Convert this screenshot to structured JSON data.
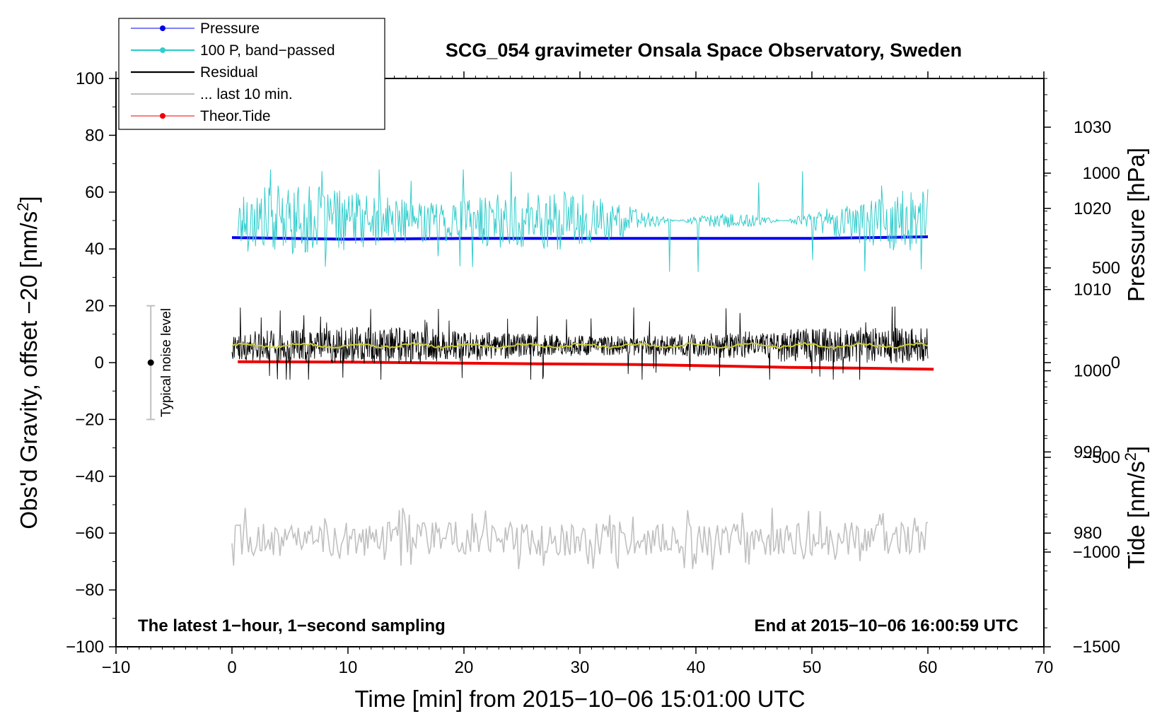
{
  "chart_data": {
    "type": "line",
    "title": "SCG_054 gravimeter Onsala Space Observatory, Sweden",
    "xlabel": "Time [min] from 2015−10−06 15:01:00 UTC",
    "ylabel_left": "Obs'd Gravity, offset −20 [nm/s",
    "ylabel_left_sup": "2",
    "ylabel_left_end": "]",
    "ylabel_right_pressure": "Pressure [hPa]",
    "ylabel_right_tide": "Tide [nm/s",
    "ylabel_right_tide_sup": "2",
    "ylabel_right_tide_end": "]",
    "xlim": [
      -10,
      70
    ],
    "ylim_left": [
      -100,
      100
    ],
    "pressure_axis_range": [
      966,
      1036
    ],
    "tide_axis_range": [
      -1500,
      1500
    ],
    "grid": false,
    "legend_position": "top-left",
    "x_ticks": [
      -10,
      0,
      10,
      20,
      30,
      40,
      50,
      60,
      70
    ],
    "x_tick_labels": [
      "−10",
      "0",
      "10",
      "20",
      "30",
      "40",
      "50",
      "60",
      "70"
    ],
    "y_left_ticks": [
      100,
      80,
      60,
      40,
      20,
      0,
      -20,
      -40,
      -60,
      -80,
      -100
    ],
    "y_left_tick_labels": [
      "100",
      "80",
      "60",
      "40",
      "20",
      "0",
      "−20",
      "−40",
      "−60",
      "−80",
      "−100"
    ],
    "pressure_ticks": [
      980,
      990,
      1000,
      1010,
      1020,
      1030
    ],
    "pressure_tick_labels": [
      "980",
      "990",
      "1000",
      "1010",
      "1020",
      "1030"
    ],
    "tide_ticks": [
      1000,
      500,
      0,
      -500,
      -1000,
      -1500
    ],
    "tide_tick_labels": [
      "1000",
      "500",
      "0",
      "−500",
      "−1000",
      "−1500"
    ],
    "series": [
      {
        "name": "Pressure",
        "color": "#0000ee",
        "axis": "pressure",
        "x_range": [
          0,
          60
        ],
        "approx_value_hPa": 1016.3,
        "points": [
          [
            0,
            1016.4
          ],
          [
            10,
            1016.2
          ],
          [
            20,
            1016.3
          ],
          [
            30,
            1016.3
          ],
          [
            40,
            1016.3
          ],
          [
            50,
            1016.3
          ],
          [
            60,
            1016.5
          ]
        ]
      },
      {
        "name": "100 P, band−passed",
        "color": "#33cccc",
        "axis": "left",
        "x_range": [
          0.5,
          60
        ],
        "mean": 50,
        "min": 24,
        "max": 68
      },
      {
        "name": "Residual",
        "color": "#000000",
        "axis": "left",
        "x_range": [
          0,
          60
        ],
        "mean": 6,
        "min": -6,
        "max": 20
      },
      {
        "name": "... last 10 min.",
        "color": "#c0c0c0",
        "axis": "left",
        "x_range": [
          0,
          60
        ],
        "mean": -62,
        "min": -73,
        "max": -51
      },
      {
        "name": "Theor.Tide",
        "color": "#ee0000",
        "axis": "tide",
        "points": [
          [
            0.5,
            5
          ],
          [
            10,
            3
          ],
          [
            20,
            -3
          ],
          [
            28,
            -7
          ],
          [
            35,
            -10
          ],
          [
            42,
            -18
          ],
          [
            48,
            -25
          ],
          [
            55,
            -30
          ],
          [
            60.5,
            -35
          ]
        ]
      }
    ],
    "residual_smoothed_color": "#cccc33",
    "noise_bar": {
      "x": -7,
      "center": 0,
      "low": -20,
      "high": 20,
      "label": "Typical noise level"
    },
    "annotations": {
      "bottom_left": "The latest 1−hour, 1−second sampling",
      "bottom_right": "End at 2015−10−06 16:00:59 UTC"
    }
  }
}
